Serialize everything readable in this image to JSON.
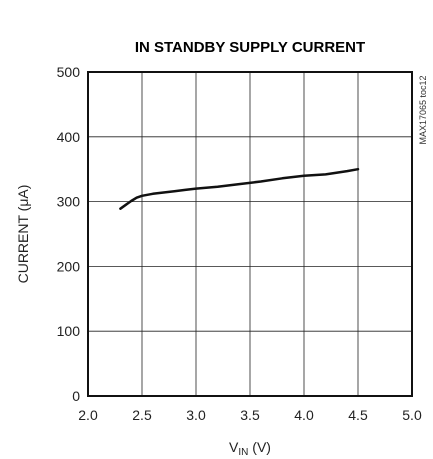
{
  "chart_data": {
    "type": "line",
    "title": "IN STANDBY SUPPLY CURRENT",
    "ylabel": "CURRENT (μA)",
    "xlabel_main": "V",
    "xlabel_sub": "IN",
    "xlabel_unit": " (V)",
    "xlim": [
      2.0,
      5.0
    ],
    "ylim": [
      0,
      500
    ],
    "x_ticks": [
      2.0,
      2.5,
      3.0,
      3.5,
      4.0,
      4.5,
      5.0
    ],
    "x_tick_labels": [
      "2.0",
      "2.5",
      "3.0",
      "3.5",
      "4.0",
      "4.5",
      "5.0"
    ],
    "y_ticks": [
      0,
      100,
      200,
      300,
      400,
      500
    ],
    "y_tick_labels": [
      "0",
      "100",
      "200",
      "300",
      "400",
      "500"
    ],
    "grid": true,
    "side_code": "MAX17065 toc12",
    "series": [
      {
        "x": [
          2.3,
          2.35,
          2.4,
          2.45,
          2.5,
          2.6,
          2.7,
          2.8,
          2.9,
          3.0,
          3.2,
          3.4,
          3.6,
          3.8,
          4.0,
          4.2,
          4.4,
          4.5
        ],
        "y": [
          289,
          295,
          301,
          306,
          309,
          312,
          314,
          316,
          318,
          320,
          323,
          327,
          331,
          336,
          340,
          342,
          347,
          350
        ]
      }
    ]
  }
}
